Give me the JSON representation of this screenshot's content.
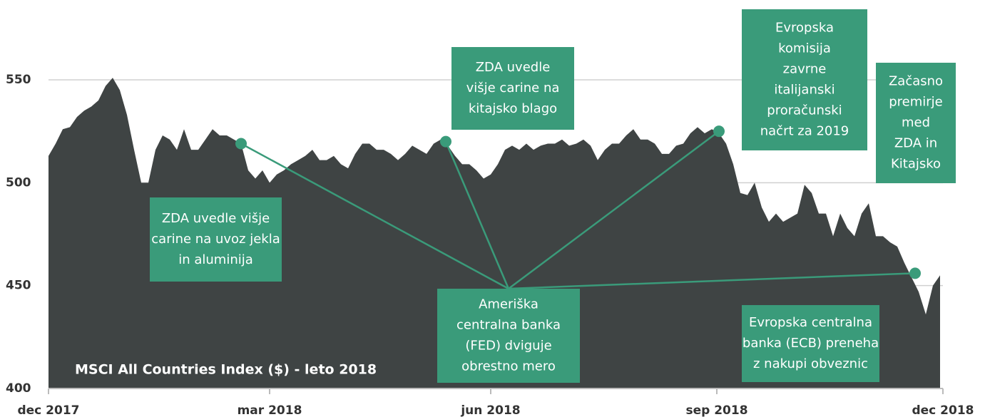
{
  "chart_data": {
    "type": "area",
    "title": "MSCI All Countries Index ($) - leto 2018",
    "color": "#3f4444",
    "values": [
      513,
      519,
      526,
      527,
      532,
      535,
      537,
      540,
      547,
      551,
      545,
      533,
      516,
      500,
      500,
      516,
      523,
      521,
      516,
      526,
      516,
      516,
      521,
      526,
      523,
      523,
      521,
      519,
      506,
      502,
      506,
      500,
      504,
      506,
      509,
      511,
      513,
      516,
      511,
      511,
      513,
      509,
      507,
      514,
      519,
      519,
      516,
      516,
      514,
      511,
      514,
      518,
      516,
      514,
      519,
      521,
      518,
      513,
      509,
      509,
      506,
      502,
      504,
      509,
      516,
      518,
      516,
      519,
      516,
      518,
      519,
      519,
      521,
      518,
      519,
      521,
      518,
      511,
      516,
      519,
      519,
      523,
      526,
      521,
      521,
      519,
      514,
      514,
      518,
      519,
      524,
      527,
      524,
      526,
      524,
      519,
      509,
      495,
      494,
      500,
      488,
      481,
      485,
      481,
      483,
      485,
      499,
      495,
      485,
      485,
      474,
      485,
      478,
      474,
      485,
      490,
      474,
      474,
      471,
      469,
      461,
      454,
      447,
      436,
      450,
      455
    ],
    "xlim": [
      0,
      125.4
    ],
    "xticks": [
      {
        "value": 0,
        "label": "dec 2017"
      },
      {
        "value": 31,
        "label": "mar 2018"
      },
      {
        "value": 62,
        "label": "jun 2018"
      },
      {
        "value": 93.7,
        "label": "sep 2018"
      },
      {
        "value": 125.4,
        "label": "dec 2018"
      }
    ],
    "ylim": [
      400,
      550
    ],
    "yticks": [
      400,
      450,
      500,
      550
    ],
    "grid": true,
    "annotation_color": "#3a9b7a",
    "annotations": [
      {
        "text": [
          "ZDA uvedle višje",
          "carine na uvoz jekla",
          "in aluminija"
        ]
      },
      {
        "text": [
          "ZDA uvedle",
          "višje carine na",
          "kitajsko blago"
        ]
      },
      {
        "text": [
          "Evropska",
          "komisija",
          "zavrne",
          "italijanski",
          "proračunski",
          "načrt za 2019"
        ]
      },
      {
        "text": [
          "Začasno",
          "premirje",
          "med",
          "ZDA in",
          "Kitajsko"
        ]
      },
      {
        "text": [
          "Ameriška",
          "centralna banka",
          "(FED) dviguje",
          "obrestno mero"
        ],
        "points": [
          {
            "x": 27,
            "y": 519
          },
          {
            "x": 55.7,
            "y": 520
          },
          {
            "x": 94,
            "y": 525
          },
          {
            "x": 121.5,
            "y": 456
          }
        ]
      },
      {
        "text": [
          "Evropska centralna",
          "banka (ECB) preneha",
          "z nakupi obveznic"
        ]
      }
    ]
  }
}
